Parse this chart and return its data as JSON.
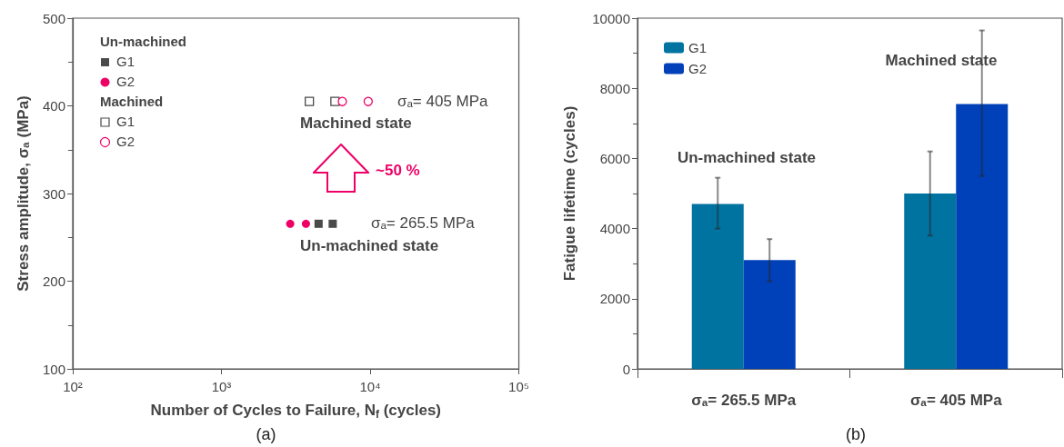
{
  "chart_data": [
    {
      "type": "scatter",
      "title": "(a)",
      "xlabel": "Number of Cycles to Failure, N$_{f}$ (cycles)",
      "ylabel": "Stress amplitude, σₐ (MPa)",
      "log": "x",
      "xlim": [
        100,
        100000
      ],
      "xticks": [
        {
          "value": 100,
          "label": "10²"
        },
        {
          "value": 1000,
          "label": "10³"
        },
        {
          "value": 10000,
          "label": "10⁴"
        },
        {
          "value": 100000,
          "label": "10⁵"
        }
      ],
      "ylim": [
        100,
        500
      ],
      "yticks": [
        100,
        200,
        300,
        400,
        500
      ],
      "legend": "top left",
      "series": [
        {
          "name": "G1",
          "color": "#4a4a4a",
          "marker": "square",
          "x": [
            4500,
            5600
          ],
          "values": [
            265.5,
            265.5
          ]
        },
        {
          "name": "G2",
          "color": "#ee0066",
          "marker": "circle",
          "x": [
            2900,
            3700
          ],
          "values": [
            265.5,
            265.5
          ]
        },
        {
          "name": "G1",
          "color": "#4a4a4a",
          "marker": "square",
          "x": [
            3900,
            5800
          ],
          "values": [
            405,
            405
          ]
        },
        {
          "name": "G2",
          "color": "#ee0066",
          "marker": "circle",
          "x": [
            6500,
            9700
          ],
          "values": [
            405,
            405
          ]
        }
      ],
      "annotations": [
        "Un-machined",
        "Machined",
        "σₐ= 405 MPa",
        "Machined state",
        "~50 %",
        "σₐ= 265.5 MPa",
        "Un-machined state"
      ]
    },
    {
      "type": "bar",
      "title": "(b)",
      "ylabel": "Fatigue lifetime (cycles)",
      "categories": [
        "σₐ= 265.5 MPa",
        "σₐ= 405 MPa"
      ],
      "ylim": [
        0,
        10000
      ],
      "yticks": [
        0,
        2000,
        4000,
        6000,
        8000,
        10000
      ],
      "legend": "top left",
      "series": [
        {
          "name": "G1",
          "color": "#0073a0",
          "values": [
            4700,
            5000
          ],
          "errors": [
            [
              4000,
              5450
            ],
            [
              3800,
              6200
            ]
          ]
        },
        {
          "name": "G2",
          "color": "#0040b8",
          "values": [
            3100,
            7550
          ],
          "errors": [
            [
              2500,
              3700
            ],
            [
              5500,
              9650
            ]
          ]
        }
      ],
      "annotations": [
        "Un-machined state",
        "Machined state"
      ]
    }
  ]
}
